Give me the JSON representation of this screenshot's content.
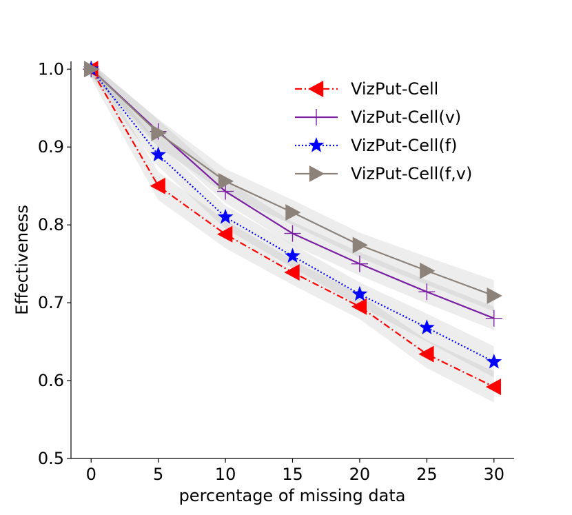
{
  "chart_data": {
    "type": "line",
    "title": "",
    "xlabel": "percentage of missing data",
    "ylabel": "Effectiveness",
    "x": [
      0,
      5,
      10,
      15,
      20,
      25,
      30
    ],
    "xticks": [
      "0",
      "5",
      "10",
      "15",
      "20",
      "25",
      "30"
    ],
    "yticks": [
      "0.5",
      "0.6",
      "0.7",
      "0.8",
      "0.9",
      "1.0"
    ],
    "ytick_values": [
      0.5,
      0.6,
      0.7,
      0.8,
      0.9,
      1.0
    ],
    "xlim": [
      -1.5,
      31.5
    ],
    "ylim": [
      0.5,
      1.01
    ],
    "legend_position": "top-right",
    "series": [
      {
        "key": "vizput-cell",
        "name": "VizPut-Cell",
        "color": "#ff0000",
        "line_style": "dash-dot",
        "marker": "triangle-left",
        "values": [
          1.0,
          0.85,
          0.788,
          0.739,
          0.695,
          0.634,
          0.592
        ],
        "band": [
          0.012,
          0.018,
          0.018,
          0.016,
          0.016,
          0.018,
          0.02
        ]
      },
      {
        "key": "vizput-cell-v",
        "name": "VizPut-Cell(v)",
        "color": "#7a1fa2",
        "line_style": "solid",
        "marker": "plus",
        "values": [
          1.0,
          0.92,
          0.843,
          0.789,
          0.75,
          0.714,
          0.68
        ],
        "band": [
          0.008,
          0.015,
          0.015,
          0.015,
          0.015,
          0.015,
          0.015
        ]
      },
      {
        "key": "vizput-cell-f",
        "name": "VizPut-Cell(f)",
        "color": "#0000ff",
        "line_style": "dotted",
        "marker": "star",
        "values": [
          1.0,
          0.89,
          0.81,
          0.76,
          0.711,
          0.668,
          0.624
        ],
        "band": [
          0.01,
          0.015,
          0.015,
          0.015,
          0.015,
          0.018,
          0.02
        ]
      },
      {
        "key": "vizput-cell-fv",
        "name": "VizPut-Cell(f,v)",
        "color": "#8c8279",
        "line_style": "solid",
        "marker": "triangle-right",
        "values": [
          1.0,
          0.918,
          0.856,
          0.816,
          0.774,
          0.741,
          0.709
        ],
        "band": [
          0.008,
          0.018,
          0.016,
          0.016,
          0.016,
          0.018,
          0.02
        ]
      }
    ]
  }
}
